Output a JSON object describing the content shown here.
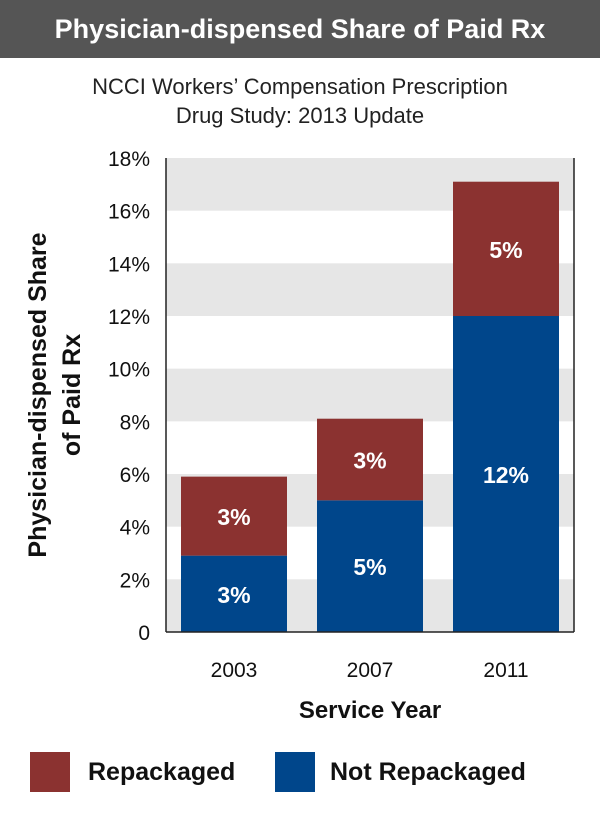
{
  "banner": {
    "title": "Physician-dispensed Share of Paid Rx"
  },
  "chart_data": {
    "type": "bar",
    "stacked": true,
    "subtitle_lines": [
      "NCCI Workers’ Compensation Prescription",
      "Drug Study: 2013 Update"
    ],
    "categories": [
      "2003",
      "2007",
      "2011"
    ],
    "series": [
      {
        "name": "Not Repackaged",
        "values": [
          2.9,
          5.0,
          12.0
        ],
        "labels": [
          "3%",
          "5%",
          "12%"
        ],
        "color": "#00468b"
      },
      {
        "name": "Repackaged",
        "values": [
          3.0,
          3.1,
          5.1
        ],
        "labels": [
          "3%",
          "3%",
          "5%"
        ],
        "color": "#8b3230"
      }
    ],
    "ylabel_lines": [
      "Physician-dispensed Share",
      "of Paid Rx"
    ],
    "xlabel": "Service Year",
    "ylim": [
      0,
      18
    ],
    "yticks": [
      {
        "value": 0,
        "label": "0"
      },
      {
        "value": 2,
        "label": "2%"
      },
      {
        "value": 4,
        "label": "4%"
      },
      {
        "value": 6,
        "label": "6%"
      },
      {
        "value": 8,
        "label": "8%"
      },
      {
        "value": 10,
        "label": "10%"
      },
      {
        "value": 12,
        "label": "12%"
      },
      {
        "value": 14,
        "label": "14%"
      },
      {
        "value": 16,
        "label": "16%"
      },
      {
        "value": 18,
        "label": "18%"
      }
    ],
    "grid": "alternating horizontal bands",
    "band_color": "#e6e6e6",
    "legend": {
      "position": "bottom",
      "order": [
        "Repackaged",
        "Not Repackaged"
      ]
    }
  }
}
